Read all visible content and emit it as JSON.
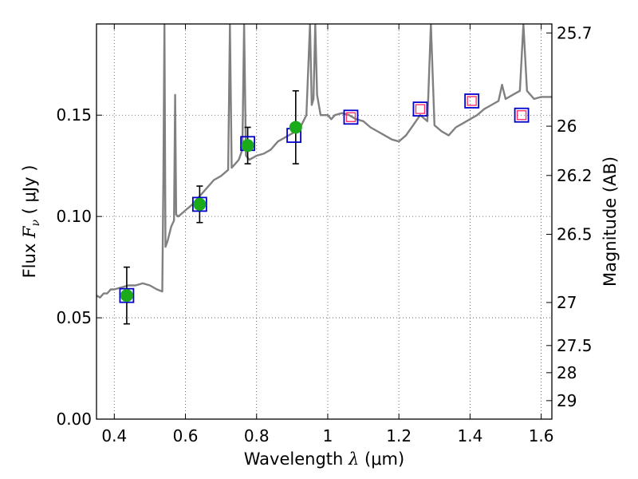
{
  "chart_data": {
    "type": "scatter",
    "xlabel": {
      "prefix": "Wavelength ",
      "symbol": "λ",
      "unit": " (μm)"
    },
    "ylabel": {
      "prefix": "Flux ",
      "symbol": "F",
      "sub": "ν",
      "unit": " ( μJy )"
    },
    "y2label": "Magnitude (AB)",
    "xlim": [
      0.35,
      1.63
    ],
    "ylim": [
      0.0,
      0.195
    ],
    "x_ticks": [
      0.4,
      0.6,
      0.8,
      1.0,
      1.2,
      1.4,
      1.6
    ],
    "x_tick_labels": [
      "0.4",
      "0.6",
      "0.8",
      "1",
      "1.2",
      "1.4",
      "1.6"
    ],
    "y_ticks": [
      0.0,
      0.05,
      0.1,
      0.15
    ],
    "y_tick_labels": [
      "0.00",
      "0.05",
      "0.10",
      "0.15"
    ],
    "y2_ticks": [
      {
        "mag": 25.7,
        "label": "25.7"
      },
      {
        "mag": 26,
        "label": "26"
      },
      {
        "mag": 26.2,
        "label": "26.2"
      },
      {
        "mag": 26.5,
        "label": "26.5"
      },
      {
        "mag": 27,
        "label": "27"
      },
      {
        "mag": 27.5,
        "label": "27.5"
      },
      {
        "mag": 28,
        "label": "28"
      },
      {
        "mag": 29,
        "label": "29"
      }
    ],
    "grid": true,
    "model_spectrum": {
      "color": "#808080",
      "points": [
        [
          0.35,
          0.061
        ],
        [
          0.36,
          0.06
        ],
        [
          0.37,
          0.062
        ],
        [
          0.38,
          0.062
        ],
        [
          0.39,
          0.064
        ],
        [
          0.4,
          0.064
        ],
        [
          0.42,
          0.065
        ],
        [
          0.44,
          0.066
        ],
        [
          0.46,
          0.066
        ],
        [
          0.48,
          0.067
        ],
        [
          0.5,
          0.066
        ],
        [
          0.52,
          0.064
        ],
        [
          0.535,
          0.063
        ],
        [
          0.538,
          0.12
        ],
        [
          0.541,
          0.195
        ],
        [
          0.544,
          0.085
        ],
        [
          0.55,
          0.088
        ],
        [
          0.56,
          0.095
        ],
        [
          0.568,
          0.098
        ],
        [
          0.571,
          0.16
        ],
        [
          0.574,
          0.101
        ],
        [
          0.58,
          0.1
        ],
        [
          0.6,
          0.103
        ],
        [
          0.62,
          0.106
        ],
        [
          0.65,
          0.112
        ],
        [
          0.68,
          0.118
        ],
        [
          0.7,
          0.12
        ],
        [
          0.72,
          0.123
        ],
        [
          0.725,
          0.195
        ],
        [
          0.73,
          0.124
        ],
        [
          0.74,
          0.126
        ],
        [
          0.75,
          0.128
        ],
        [
          0.76,
          0.133
        ],
        [
          0.765,
          0.195
        ],
        [
          0.77,
          0.13
        ],
        [
          0.78,
          0.128
        ],
        [
          0.8,
          0.13
        ],
        [
          0.82,
          0.131
        ],
        [
          0.84,
          0.133
        ],
        [
          0.85,
          0.135
        ],
        [
          0.86,
          0.137
        ],
        [
          0.87,
          0.138
        ],
        [
          0.88,
          0.139
        ],
        [
          0.9,
          0.141
        ],
        [
          0.92,
          0.143
        ],
        [
          0.94,
          0.15
        ],
        [
          0.95,
          0.195
        ],
        [
          0.955,
          0.155
        ],
        [
          0.96,
          0.158
        ],
        [
          0.965,
          0.195
        ],
        [
          0.97,
          0.16
        ],
        [
          0.98,
          0.15
        ],
        [
          1.0,
          0.15
        ],
        [
          1.01,
          0.148
        ],
        [
          1.02,
          0.15
        ],
        [
          1.04,
          0.151
        ],
        [
          1.06,
          0.15
        ],
        [
          1.08,
          0.148
        ],
        [
          1.1,
          0.147
        ],
        [
          1.12,
          0.144
        ],
        [
          1.14,
          0.142
        ],
        [
          1.16,
          0.14
        ],
        [
          1.18,
          0.138
        ],
        [
          1.2,
          0.137
        ],
        [
          1.22,
          0.14
        ],
        [
          1.24,
          0.145
        ],
        [
          1.26,
          0.15
        ],
        [
          1.28,
          0.147
        ],
        [
          1.29,
          0.195
        ],
        [
          1.3,
          0.145
        ],
        [
          1.32,
          0.142
        ],
        [
          1.34,
          0.14
        ],
        [
          1.36,
          0.144
        ],
        [
          1.38,
          0.146
        ],
        [
          1.4,
          0.148
        ],
        [
          1.42,
          0.15
        ],
        [
          1.44,
          0.153
        ],
        [
          1.46,
          0.155
        ],
        [
          1.48,
          0.157
        ],
        [
          1.49,
          0.165
        ],
        [
          1.5,
          0.158
        ],
        [
          1.52,
          0.16
        ],
        [
          1.54,
          0.162
        ],
        [
          1.55,
          0.195
        ],
        [
          1.56,
          0.162
        ],
        [
          1.58,
          0.158
        ],
        [
          1.6,
          0.159
        ],
        [
          1.63,
          0.159
        ]
      ]
    },
    "observed_photometry": {
      "marker_color": "#1aaa1a",
      "points": [
        {
          "x": 0.435,
          "y": 0.061,
          "err": 0.014
        },
        {
          "x": 0.64,
          "y": 0.106,
          "err": 0.009
        },
        {
          "x": 0.775,
          "y": 0.135,
          "err": 0.009
        },
        {
          "x": 0.91,
          "y": 0.144,
          "err": 0.018
        }
      ]
    },
    "model_photometry": {
      "edge_color": "#0000cc",
      "points": [
        {
          "x": 0.435,
          "y": 0.061
        },
        {
          "x": 0.64,
          "y": 0.106
        },
        {
          "x": 0.775,
          "y": 0.136
        },
        {
          "x": 0.905,
          "y": 0.14
        },
        {
          "x": 1.065,
          "y": 0.149
        },
        {
          "x": 1.26,
          "y": 0.153
        },
        {
          "x": 1.405,
          "y": 0.157
        },
        {
          "x": 1.545,
          "y": 0.15
        }
      ]
    },
    "upper_limits": {
      "edge_color": "#ff3366",
      "points": [
        {
          "x": 1.065,
          "y": 0.149
        },
        {
          "x": 1.26,
          "y": 0.153
        },
        {
          "x": 1.405,
          "y": 0.157
        },
        {
          "x": 1.545,
          "y": 0.15
        }
      ]
    }
  }
}
